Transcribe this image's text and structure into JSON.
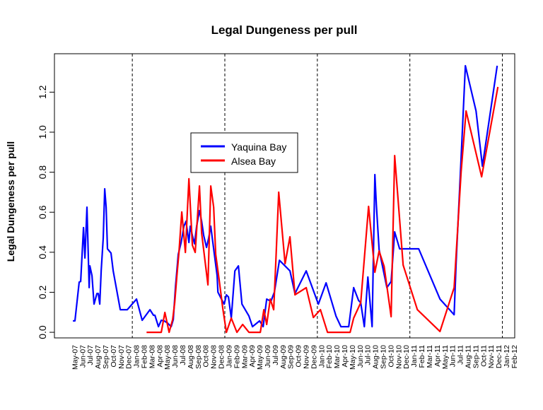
{
  "chart_data": {
    "type": "line",
    "title": "Legal Dungeness per pull",
    "xlabel": "",
    "ylabel": "Legal Dungeness per pull",
    "x_units": "month index (0 = May-07)",
    "xlim": [
      -2.6,
      57.1
    ],
    "ylim": [
      -0.028,
      1.392
    ],
    "yticks": [
      0.0,
      0.2,
      0.4,
      0.6,
      0.8,
      1.0,
      1.2
    ],
    "ytick_labels": [
      "0.0",
      "0.2",
      "0.4",
      "0.6",
      "0.8",
      "1.0",
      "1.2"
    ],
    "xtick_labels": [
      "May-07",
      "Jun-07",
      "Jul-07",
      "Aug-07",
      "Sep-07",
      "Oct-07",
      "Nov-07",
      "Dec-07",
      "Jan-08",
      "Feb-08",
      "Mar-08",
      "Apr-08",
      "May-08",
      "Jun-08",
      "Jul-08",
      "Aug-08",
      "Sep-08",
      "Oct-08",
      "Nov-08",
      "Dec-08",
      "Jan-09",
      "Feb-09",
      "Mar-09",
      "Apr-09",
      "May-09",
      "Jun-09",
      "Jul-09",
      "Aug-09",
      "Sep-09",
      "Oct-09",
      "Nov-09",
      "Dec-09",
      "Jan-10",
      "Feb-10",
      "Mar-10",
      "Apr-10",
      "May-10",
      "Jun-10",
      "Jul-10",
      "Aug-10",
      "Sep-10",
      "Oct-10",
      "Nov-10",
      "Dec-10",
      "Jan-11",
      "Feb-11",
      "Mar-11",
      "Apr-11",
      "May-11",
      "Jun-11",
      "Jul-11",
      "Aug-11",
      "Sep-11",
      "Oct-11",
      "Nov-11",
      "Dec-11",
      "Jan-12",
      "Feb-12"
    ],
    "year_dividers": [
      7.5,
      19.5,
      31.5,
      43.5,
      55.5
    ],
    "grid": false,
    "legend": {
      "placement": "center-left",
      "entries": [
        "Yaquina Bay",
        "Alsea Bay"
      ]
    },
    "series": [
      {
        "name": "Yaquina Bay",
        "color": "#0000ff",
        "points": [
          [
            -0.21,
            0.057
          ],
          [
            0.06,
            0.057
          ],
          [
            0.61,
            0.251
          ],
          [
            0.8,
            0.254
          ],
          [
            1.17,
            0.523
          ],
          [
            1.35,
            0.371
          ],
          [
            1.62,
            0.625
          ],
          [
            1.9,
            0.223
          ],
          [
            1.99,
            0.332
          ],
          [
            2.27,
            0.283
          ],
          [
            2.54,
            0.141
          ],
          [
            2.91,
            0.194
          ],
          [
            3.09,
            0.194
          ],
          [
            3.28,
            0.141
          ],
          [
            3.46,
            0.307
          ],
          [
            3.73,
            0.47
          ],
          [
            3.92,
            0.717
          ],
          [
            4.1,
            0.625
          ],
          [
            4.28,
            0.417
          ],
          [
            4.74,
            0.396
          ],
          [
            5.02,
            0.307
          ],
          [
            5.94,
            0.113
          ],
          [
            6.85,
            0.113
          ],
          [
            8.05,
            0.166
          ],
          [
            8.78,
            0.06
          ],
          [
            9.79,
            0.113
          ],
          [
            10.25,
            0.085
          ],
          [
            10.43,
            0.085
          ],
          [
            10.89,
            0.028
          ],
          [
            11.26,
            0.06
          ],
          [
            11.63,
            0.057
          ],
          [
            12.08,
            0.046
          ],
          [
            12.54,
            0.028
          ],
          [
            12.82,
            0.064
          ],
          [
            13.09,
            0.223
          ],
          [
            13.46,
            0.389
          ],
          [
            13.83,
            0.449
          ],
          [
            14.19,
            0.53
          ],
          [
            14.47,
            0.555
          ],
          [
            14.84,
            0.449
          ],
          [
            15.02,
            0.53
          ],
          [
            15.29,
            0.484
          ],
          [
            15.57,
            0.442
          ],
          [
            15.84,
            0.53
          ],
          [
            16.21,
            0.608
          ],
          [
            16.49,
            0.555
          ],
          [
            16.76,
            0.484
          ],
          [
            17.13,
            0.424
          ],
          [
            17.4,
            0.47
          ],
          [
            17.68,
            0.53
          ],
          [
            18.14,
            0.389
          ],
          [
            18.5,
            0.283
          ],
          [
            18.6,
            0.201
          ],
          [
            19.06,
            0.166
          ],
          [
            19.42,
            0.141
          ],
          [
            19.7,
            0.187
          ],
          [
            19.97,
            0.177
          ],
          [
            20.34,
            0.071
          ],
          [
            20.8,
            0.307
          ],
          [
            21.26,
            0.332
          ],
          [
            21.72,
            0.141
          ],
          [
            22.63,
            0.081
          ],
          [
            23.09,
            0.028
          ],
          [
            24.01,
            0.057
          ],
          [
            24.47,
            0.028
          ],
          [
            24.93,
            0.166
          ],
          [
            25.48,
            0.155
          ],
          [
            25.93,
            0.201
          ],
          [
            26.58,
            0.36
          ],
          [
            27.95,
            0.307
          ],
          [
            28.6,
            0.194
          ],
          [
            30.06,
            0.307
          ],
          [
            31.63,
            0.141
          ],
          [
            32.63,
            0.247
          ],
          [
            33.92,
            0.081
          ],
          [
            34.56,
            0.028
          ],
          [
            35.57,
            0.028
          ],
          [
            36.21,
            0.223
          ],
          [
            36.85,
            0.159
          ],
          [
            37.13,
            0.148
          ],
          [
            37.59,
            0.028
          ],
          [
            38.05,
            0.276
          ],
          [
            38.6,
            0.028
          ],
          [
            38.96,
            0.788
          ],
          [
            39.15,
            0.636
          ],
          [
            39.51,
            0.413
          ],
          [
            40.52,
            0.223
          ],
          [
            41.07,
            0.254
          ],
          [
            41.53,
            0.502
          ],
          [
            42.17,
            0.417
          ],
          [
            44.65,
            0.417
          ],
          [
            47.41,
            0.166
          ],
          [
            49.24,
            0.088
          ],
          [
            49.51,
            0.353
          ],
          [
            50.15,
            0.873
          ],
          [
            50.7,
            1.332
          ],
          [
            52.08,
            1.106
          ],
          [
            52.91,
            0.83
          ],
          [
            54.83,
            1.332
          ]
        ]
      },
      {
        "name": "Alsea Bay",
        "color": "#ff0000",
        "points": [
          [
            9.35,
            0
          ],
          [
            11.26,
            0
          ],
          [
            11.72,
            0.099
          ],
          [
            12.27,
            0
          ],
          [
            12.73,
            0.064
          ],
          [
            13.0,
            0.148
          ],
          [
            13.28,
            0.283
          ],
          [
            13.55,
            0.399
          ],
          [
            13.92,
            0.601
          ],
          [
            14.38,
            0.399
          ],
          [
            14.84,
            0.767
          ],
          [
            15.29,
            0.435
          ],
          [
            15.66,
            0.399
          ],
          [
            16.21,
            0.731
          ],
          [
            16.49,
            0.495
          ],
          [
            17.31,
            0.237
          ],
          [
            17.68,
            0.731
          ],
          [
            18.05,
            0.625
          ],
          [
            18.32,
            0.389
          ],
          [
            18.78,
            0.258
          ],
          [
            19.24,
            0.117
          ],
          [
            19.7,
            0
          ],
          [
            20.34,
            0.071
          ],
          [
            21.07,
            0
          ],
          [
            21.81,
            0.039
          ],
          [
            22.63,
            0
          ],
          [
            24.1,
            0
          ],
          [
            24.56,
            0.113
          ],
          [
            24.93,
            0.039
          ],
          [
            25.39,
            0.166
          ],
          [
            25.84,
            0.113
          ],
          [
            26.12,
            0.36
          ],
          [
            26.49,
            0.7
          ],
          [
            27.31,
            0.343
          ],
          [
            27.95,
            0.477
          ],
          [
            28.6,
            0.187
          ],
          [
            30.06,
            0.223
          ],
          [
            30.98,
            0.074
          ],
          [
            31.9,
            0.113
          ],
          [
            32.82,
            0
          ],
          [
            35.75,
            0
          ],
          [
            36.21,
            0.071
          ],
          [
            37.13,
            0.148
          ],
          [
            38.14,
            0.629
          ],
          [
            38.96,
            0.3
          ],
          [
            39.51,
            0.406
          ],
          [
            40.16,
            0.329
          ],
          [
            41.07,
            0.078
          ],
          [
            41.53,
            0.883
          ],
          [
            42.63,
            0.336
          ],
          [
            44.47,
            0.113
          ],
          [
            47.41,
            0.004
          ],
          [
            49.24,
            0.223
          ],
          [
            50.15,
            0.802
          ],
          [
            50.79,
            1.106
          ],
          [
            52.81,
            0.777
          ],
          [
            54.92,
            1.226
          ]
        ]
      }
    ]
  }
}
